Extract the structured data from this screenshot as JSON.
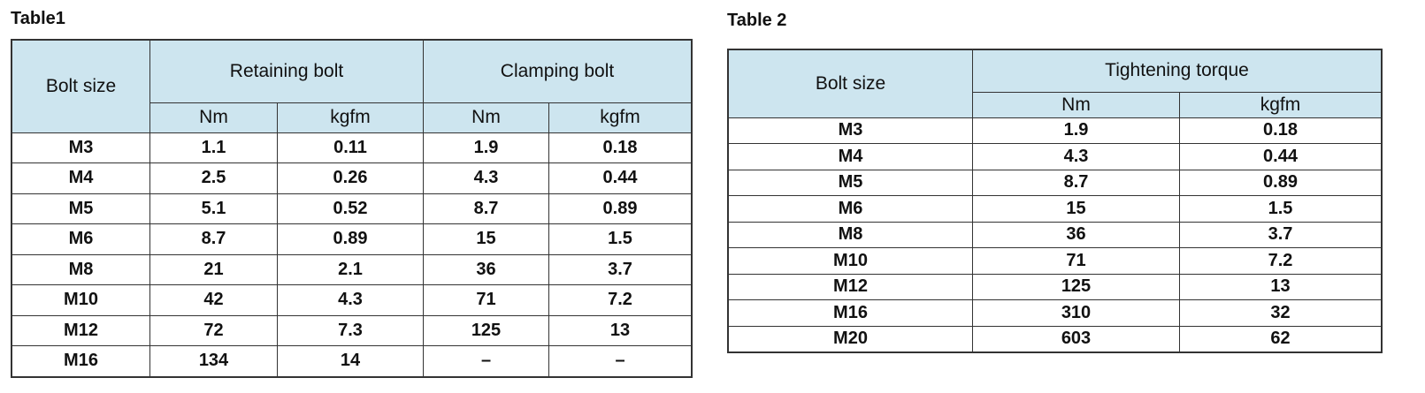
{
  "table1": {
    "title": "Table1",
    "headers": {
      "bolt_size": "Bolt size",
      "group1": "Retaining bolt",
      "group2": "Clamping bolt",
      "nm": "Nm",
      "kgfm": "kgfm"
    },
    "rows": [
      [
        "M3",
        "1.1",
        "0.11",
        "1.9",
        "0.18"
      ],
      [
        "M4",
        "2.5",
        "0.26",
        "4.3",
        "0.44"
      ],
      [
        "M5",
        "5.1",
        "0.52",
        "8.7",
        "0.89"
      ],
      [
        "M6",
        "8.7",
        "0.89",
        "15",
        "1.5"
      ],
      [
        "M8",
        "21",
        "2.1",
        "36",
        "3.7"
      ],
      [
        "M10",
        "42",
        "4.3",
        "71",
        "7.2"
      ],
      [
        "M12",
        "72",
        "7.3",
        "125",
        "13"
      ],
      [
        "M16",
        "134",
        "14",
        "–",
        "–"
      ]
    ]
  },
  "table2": {
    "title": "Table 2",
    "headers": {
      "bolt_size": "Bolt size",
      "group1": "Tightening torque",
      "nm": "Nm",
      "kgfm": "kgfm"
    },
    "rows": [
      [
        "M3",
        "1.9",
        "0.18"
      ],
      [
        "M4",
        "4.3",
        "0.44"
      ],
      [
        "M5",
        "8.7",
        "0.89"
      ],
      [
        "M6",
        "15",
        "1.5"
      ],
      [
        "M8",
        "36",
        "3.7"
      ],
      [
        "M10",
        "71",
        "7.2"
      ],
      [
        "M12",
        "125",
        "13"
      ],
      [
        "M16",
        "310",
        "32"
      ],
      [
        "M20",
        "603",
        "62"
      ]
    ]
  }
}
